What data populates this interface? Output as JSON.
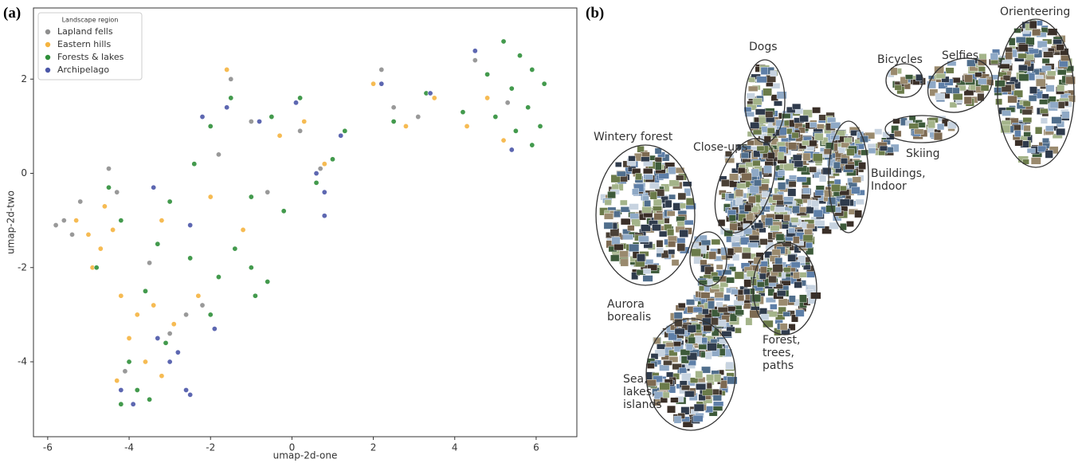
{
  "chart_data": {
    "type": "scatter",
    "panel_label": "(a)",
    "x_label": "umap-2d-one",
    "y_label": "umap-2d-two",
    "xlim": [
      -6.35,
      7.0
    ],
    "ylim": [
      -5.59,
      3.51
    ],
    "xticks": [
      -6,
      -4,
      -2,
      0,
      2,
      4,
      6
    ],
    "yticks": [
      -4,
      -2,
      0,
      2
    ],
    "grid": false,
    "legend_title": "Landscape region",
    "legend": "upper left",
    "series": [
      {
        "name": "Lapland fells",
        "color": "#8e8e8e",
        "x": [
          -5.6,
          -5.4,
          -5.8,
          -5.2,
          -4.5,
          -4.3,
          -3.0,
          -2.6,
          -2.2,
          -1.8,
          -1.5,
          -1.0,
          0.2,
          0.7,
          2.2,
          2.5,
          3.1,
          4.5,
          5.3,
          -3.5,
          -4.1,
          -0.6
        ],
        "values": [
          -1.0,
          -1.3,
          -1.1,
          -0.6,
          0.1,
          -0.4,
          -3.4,
          -3.0,
          -2.8,
          0.4,
          2.0,
          1.1,
          0.9,
          0.1,
          2.2,
          1.4,
          1.2,
          2.4,
          1.5,
          -1.9,
          -4.2,
          -0.4
        ]
      },
      {
        "name": "Eastern hills",
        "color": "#f5b440",
        "x": [
          -5.0,
          -4.7,
          -4.9,
          -4.4,
          -4.6,
          -5.3,
          -4.2,
          -3.8,
          -3.4,
          -4.0,
          -3.6,
          -4.3,
          -3.2,
          -2.9,
          -2.3,
          -1.6,
          -0.3,
          0.3,
          2.0,
          2.8,
          3.5,
          4.3,
          4.8,
          5.2,
          0.8,
          -3.2,
          -2.0,
          -1.2
        ],
        "values": [
          -1.3,
          -1.6,
          -2.0,
          -1.2,
          -0.7,
          -1.0,
          -2.6,
          -3.0,
          -2.8,
          -3.5,
          -4.0,
          -4.4,
          -4.3,
          -3.2,
          -2.6,
          2.2,
          0.8,
          1.1,
          1.9,
          1.0,
          1.6,
          1.0,
          1.6,
          0.7,
          0.2,
          -1.0,
          -0.5,
          -1.2
        ]
      },
      {
        "name": "Forests & lakes",
        "color": "#2f8f3a",
        "x": [
          5.2,
          5.6,
          5.9,
          6.2,
          5.4,
          5.8,
          6.1,
          5.5,
          5.9,
          4.8,
          5.0,
          4.2,
          3.3,
          2.5,
          1.3,
          0.2,
          -0.5,
          -1.5,
          -2.0,
          -2.4,
          -1.0,
          -0.2,
          0.6,
          -1.4,
          -1.0,
          -0.6,
          -0.9,
          -1.8,
          -2.5,
          -3.3,
          -3.0,
          -4.2,
          -4.8,
          -3.6,
          -4.0,
          -3.8,
          -4.2,
          -3.5,
          -3.1,
          -2.0,
          1.0,
          -4.5
        ],
        "values": [
          2.8,
          2.5,
          2.2,
          1.9,
          1.8,
          1.4,
          1.0,
          0.9,
          0.6,
          2.1,
          1.2,
          1.3,
          1.7,
          1.1,
          0.9,
          1.6,
          1.2,
          1.6,
          1.0,
          0.2,
          -0.5,
          -0.8,
          -0.2,
          -1.6,
          -2.0,
          -2.3,
          -2.6,
          -2.2,
          -1.8,
          -1.5,
          -0.6,
          -1.0,
          -2.0,
          -2.5,
          -4.0,
          -4.6,
          -4.9,
          -4.8,
          -3.6,
          -3.0,
          0.3,
          -0.3
        ]
      },
      {
        "name": "Archipelago",
        "color": "#4b57a8",
        "x": [
          -3.0,
          -3.3,
          -2.8,
          -2.6,
          -2.5,
          -4.2,
          -3.9,
          0.8,
          0.8,
          0.6,
          -1.6,
          -2.2,
          -0.8,
          0.1,
          1.2,
          2.2,
          3.4,
          4.5,
          5.4,
          -2.5,
          -3.4,
          -1.9
        ],
        "values": [
          -4.0,
          -3.5,
          -3.8,
          -4.6,
          -4.7,
          -4.6,
          -4.9,
          -0.4,
          -0.9,
          0.0,
          1.4,
          1.2,
          1.1,
          1.5,
          0.8,
          1.9,
          1.7,
          2.6,
          0.5,
          -1.1,
          -0.3,
          -3.3
        ]
      }
    ]
  },
  "collage": {
    "panel_label": "(b)",
    "regions": [
      {
        "label": "Orienteering"
      },
      {
        "label": "Selfies"
      },
      {
        "label": "Bicycles"
      },
      {
        "label": "Skiing"
      },
      {
        "label": "Dogs"
      },
      {
        "label": "Wintery forest"
      },
      {
        "label": "Close-ups"
      },
      {
        "label": "Buildings,\nIndoor"
      },
      {
        "label": "Aurora\nborealis"
      },
      {
        "label": "Forest,\ntrees,\npaths"
      },
      {
        "label": "Sea,\nlakes,\nislands"
      }
    ]
  }
}
